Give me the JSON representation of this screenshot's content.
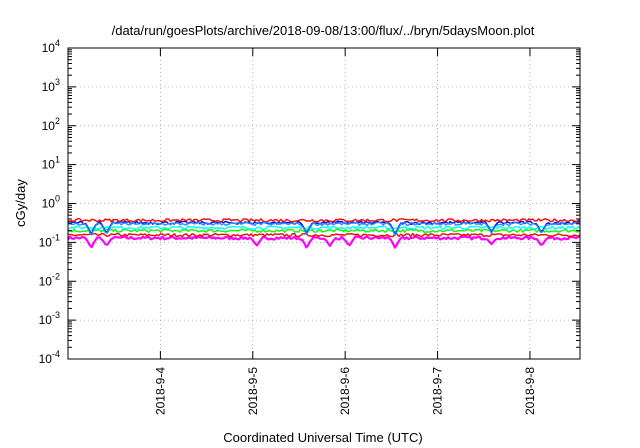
{
  "chart_data": {
    "type": "line",
    "title": "/data/run/goesPlots/archive/2018-09-08/13:00/flux/../bryn/5daysMoon.plot",
    "xlabel": "Coordinated Universal Time (UTC)",
    "ylabel": "cGy/day",
    "yscale": "log",
    "ylim": [
      0.0001,
      10000
    ],
    "y_ticks": [
      {
        "base": "10",
        "exp": "-4",
        "value": 0.0001
      },
      {
        "base": "10",
        "exp": "-3",
        "value": 0.001
      },
      {
        "base": "10",
        "exp": "-2",
        "value": 0.01
      },
      {
        "base": "10",
        "exp": "-1",
        "value": 0.1
      },
      {
        "base": "10",
        "exp": "0",
        "value": 1
      },
      {
        "base": "10",
        "exp": "1",
        "value": 10
      },
      {
        "base": "10",
        "exp": "2",
        "value": 100
      },
      {
        "base": "10",
        "exp": "3",
        "value": 1000
      },
      {
        "base": "10",
        "exp": "4",
        "value": 10000
      }
    ],
    "xlim": [
      "2018-09-03T00:00",
      "2018-09-08T13:00"
    ],
    "x_ticks": [
      "2018-9-4",
      "2018-9-5",
      "2018-9-6",
      "2018-9-7",
      "2018-9-8"
    ],
    "grid": true,
    "legend": "none",
    "series": [
      {
        "color": "#ff00ff",
        "base": 0.13,
        "dips": [
          [
            "2018-09-03T06:00",
            0.07
          ],
          [
            "2018-09-03T10:00",
            0.08
          ],
          [
            "2018-09-05T01:00",
            0.08
          ],
          [
            "2018-09-05T14:00",
            0.07
          ],
          [
            "2018-09-05T20:00",
            0.08
          ],
          [
            "2018-09-06T01:00",
            0.08
          ],
          [
            "2018-09-06T13:00",
            0.07
          ],
          [
            "2018-09-07T14:00",
            0.09
          ],
          [
            "2018-09-08T03:00",
            0.08
          ]
        ]
      },
      {
        "color": "#ff0000",
        "base": 0.155,
        "dips": []
      },
      {
        "color": "#00ff00",
        "base": 0.2,
        "dips": []
      },
      {
        "color": "#00ffff",
        "base": 0.24,
        "dips": []
      },
      {
        "color": "#0000ff",
        "base": 0.32,
        "dips": [
          [
            "2018-09-03T06:00",
            0.15
          ],
          [
            "2018-09-03T10:00",
            0.16
          ],
          [
            "2018-09-05T14:00",
            0.16
          ],
          [
            "2018-09-06T13:00",
            0.15
          ],
          [
            "2018-09-07T14:00",
            0.18
          ],
          [
            "2018-09-08T03:00",
            0.17
          ]
        ]
      },
      {
        "color": "#ff0000",
        "base": 0.37,
        "dips": []
      },
      {
        "color": "#1e90ff",
        "base": 0.3,
        "dips": [
          [
            "2018-09-03T06:00",
            0.14
          ],
          [
            "2018-09-03T10:00",
            0.15
          ],
          [
            "2018-09-05T14:00",
            0.15
          ],
          [
            "2018-09-06T13:00",
            0.14
          ],
          [
            "2018-09-07T14:00",
            0.17
          ],
          [
            "2018-09-08T03:00",
            0.16
          ]
        ]
      }
    ]
  }
}
